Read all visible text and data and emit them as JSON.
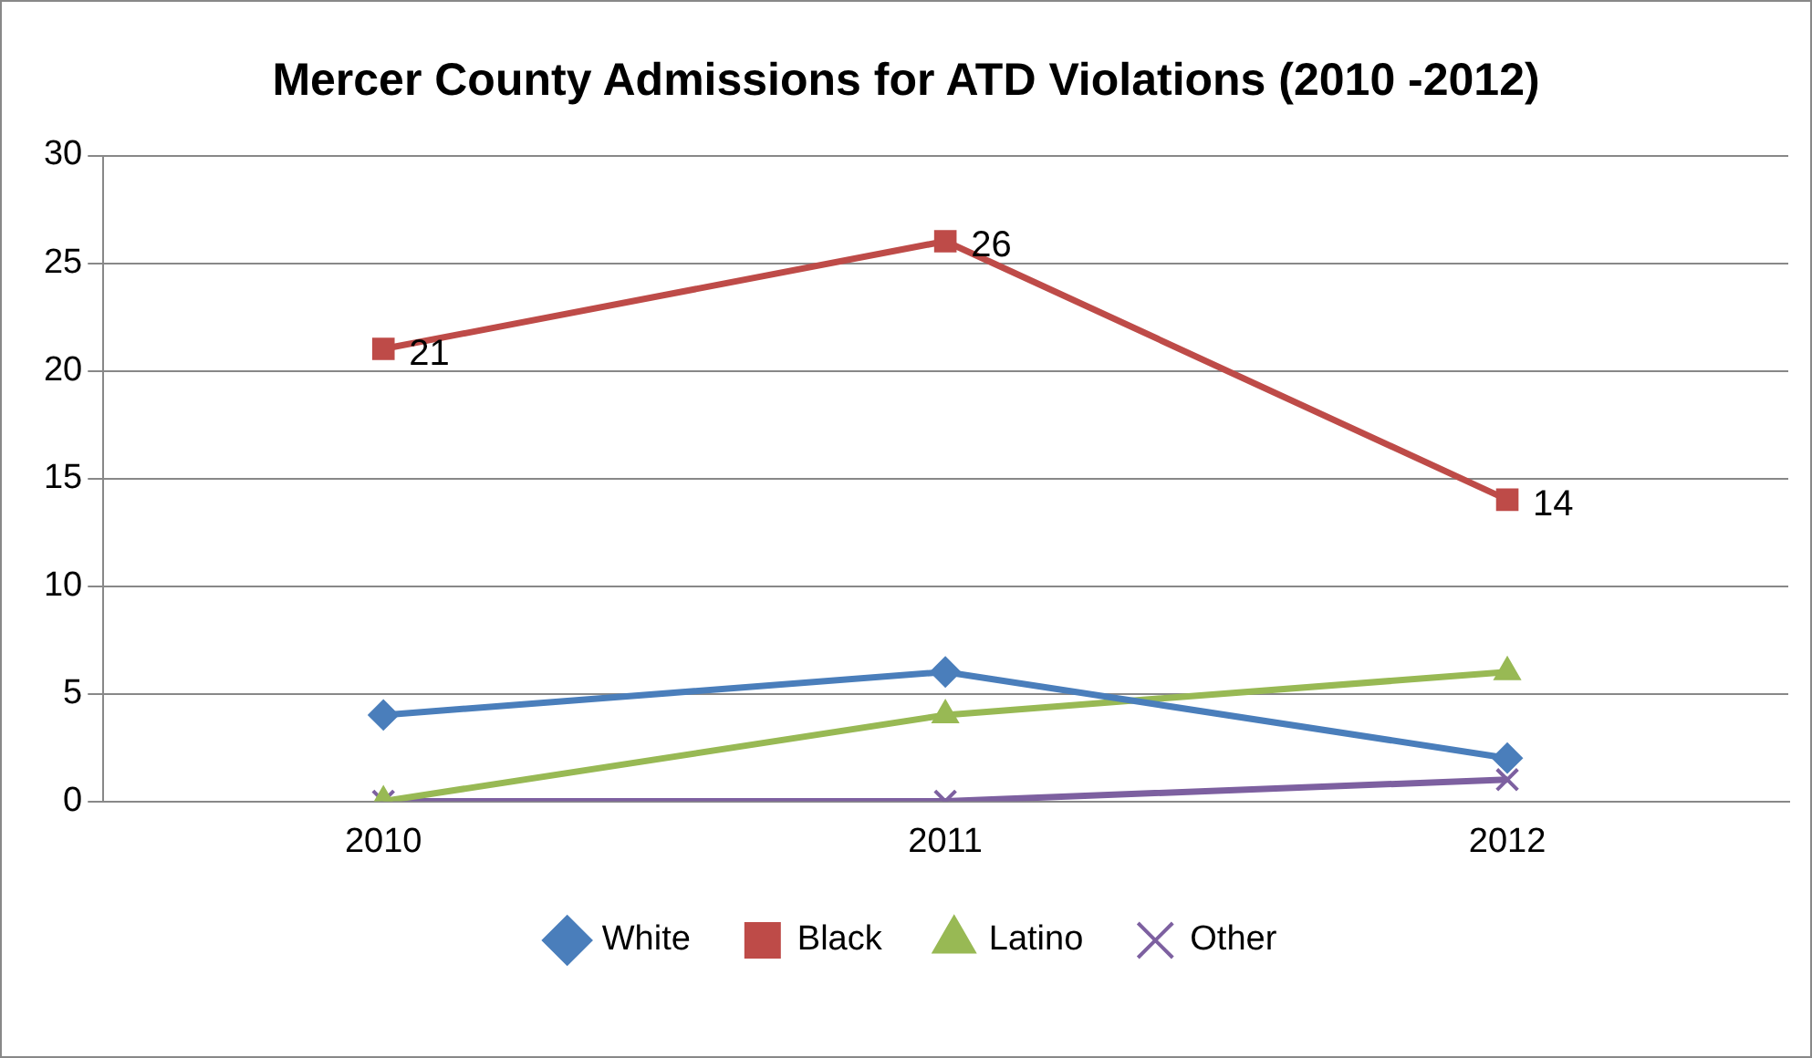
{
  "chart_data": {
    "type": "line",
    "title": "Mercer County Admissions for ATD Violations (2010 -2012)",
    "categories": [
      "2010",
      "2011",
      "2012"
    ],
    "series": [
      {
        "name": "White",
        "color": "#4a7ebb",
        "marker": "diamond",
        "values": [
          4,
          6,
          2
        ]
      },
      {
        "name": "Black",
        "color": "#be4b48",
        "marker": "square",
        "values": [
          21,
          26,
          14
        ],
        "value_labels": [
          "21",
          "26",
          "14"
        ]
      },
      {
        "name": "Latino",
        "color": "#98b954",
        "marker": "triangle",
        "values": [
          0,
          4,
          6
        ]
      },
      {
        "name": "Other",
        "color": "#7d60a0",
        "marker": "cross",
        "values": [
          0,
          0,
          1
        ]
      }
    ],
    "ylim": [
      0,
      30
    ],
    "yticks": [
      0,
      5,
      10,
      15,
      20,
      25,
      30
    ],
    "grid": "y",
    "legend": "bottom"
  }
}
